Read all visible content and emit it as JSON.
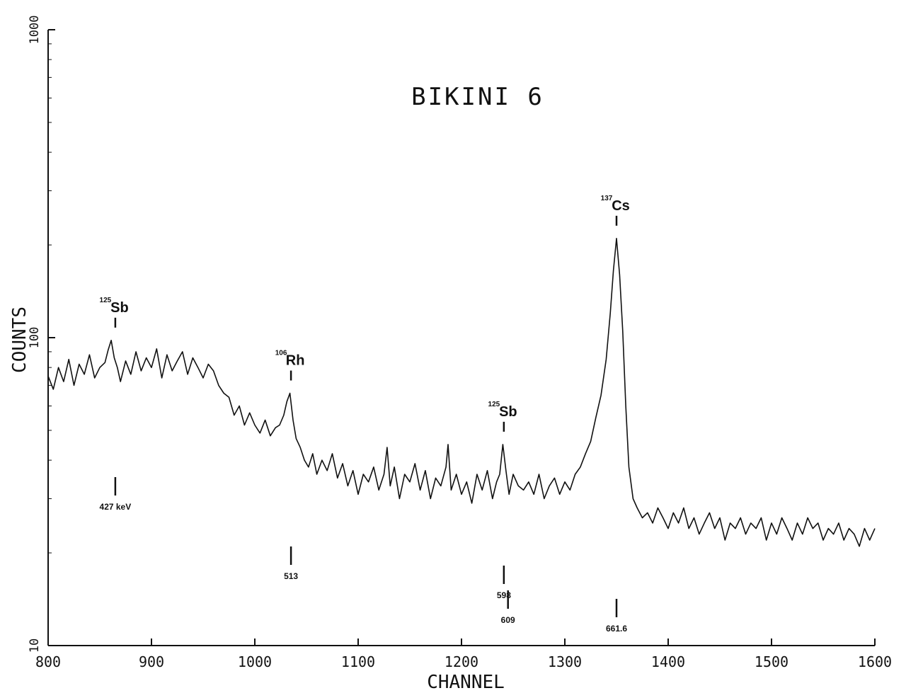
{
  "chart_data": {
    "type": "line",
    "title": "BIKINI 6",
    "xlabel": "CHANNEL",
    "ylabel": "COUNTS",
    "xlim": [
      800,
      1600
    ],
    "ylim": [
      10,
      1000
    ],
    "yscale": "log",
    "grid": false,
    "legend": "none",
    "line_color": "#111111",
    "x_ticks": [
      800,
      900,
      1000,
      1100,
      1200,
      1300,
      1400,
      1500,
      1600
    ],
    "x_tick_labels": [
      "800",
      "900",
      "1000",
      "1100",
      "1200",
      "1300",
      "1400",
      "1500",
      "1600"
    ],
    "y_ticks": [
      10,
      100,
      1000
    ],
    "y_tick_labels": [
      "10",
      "100",
      "1000"
    ],
    "series": [
      {
        "name": "",
        "x": [
          800,
          805,
          810,
          815,
          820,
          825,
          830,
          835,
          840,
          845,
          850,
          855,
          858,
          861,
          864,
          867,
          870,
          875,
          880,
          885,
          890,
          895,
          900,
          905,
          910,
          915,
          920,
          925,
          930,
          935,
          940,
          945,
          950,
          955,
          960,
          965,
          970,
          975,
          980,
          985,
          990,
          995,
          1000,
          1005,
          1010,
          1015,
          1020,
          1024,
          1028,
          1031,
          1034,
          1037,
          1040,
          1044,
          1048,
          1052,
          1056,
          1060,
          1065,
          1070,
          1075,
          1080,
          1085,
          1090,
          1095,
          1100,
          1105,
          1110,
          1115,
          1120,
          1125,
          1128,
          1131,
          1135,
          1140,
          1145,
          1150,
          1155,
          1160,
          1165,
          1170,
          1175,
          1180,
          1185,
          1187,
          1190,
          1195,
          1200,
          1205,
          1210,
          1215,
          1220,
          1225,
          1230,
          1234,
          1237,
          1240,
          1243,
          1246,
          1250,
          1255,
          1260,
          1265,
          1270,
          1275,
          1280,
          1285,
          1290,
          1295,
          1300,
          1305,
          1310,
          1315,
          1320,
          1325,
          1330,
          1335,
          1340,
          1344,
          1347,
          1350,
          1353,
          1356,
          1359,
          1362,
          1366,
          1370,
          1375,
          1380,
          1385,
          1390,
          1395,
          1400,
          1405,
          1410,
          1415,
          1420,
          1425,
          1430,
          1435,
          1440,
          1445,
          1450,
          1455,
          1460,
          1465,
          1470,
          1475,
          1480,
          1485,
          1490,
          1495,
          1500,
          1505,
          1510,
          1515,
          1520,
          1525,
          1530,
          1535,
          1540,
          1545,
          1550,
          1555,
          1560,
          1565,
          1570,
          1575,
          1580,
          1585,
          1590,
          1595,
          1600
        ],
        "values": [
          75,
          68,
          80,
          72,
          85,
          70,
          82,
          76,
          88,
          74,
          80,
          83,
          91,
          98,
          86,
          80,
          72,
          84,
          76,
          90,
          78,
          86,
          80,
          92,
          74,
          88,
          78,
          84,
          90,
          76,
          86,
          80,
          74,
          82,
          78,
          70,
          66,
          64,
          56,
          60,
          52,
          57,
          52,
          49,
          54,
          48,
          51,
          52,
          56,
          62,
          66,
          54,
          47,
          44,
          40,
          38,
          42,
          36,
          40,
          37,
          42,
          35,
          39,
          33,
          37,
          31,
          36,
          34,
          38,
          32,
          36,
          44,
          33,
          38,
          30,
          36,
          34,
          39,
          32,
          37,
          30,
          35,
          33,
          38,
          45,
          32,
          36,
          31,
          34,
          29,
          36,
          32,
          37,
          30,
          34,
          36,
          45,
          37,
          31,
          36,
          33,
          32,
          34,
          31,
          36,
          30,
          33,
          35,
          31,
          34,
          32,
          36,
          38,
          42,
          46,
          55,
          65,
          85,
          120,
          165,
          210,
          160,
          105,
          60,
          38,
          30,
          28,
          26,
          27,
          25,
          28,
          26,
          24,
          27,
          25,
          28,
          24,
          26,
          23,
          25,
          27,
          24,
          26,
          22,
          25,
          24,
          26,
          23,
          25,
          24,
          26,
          22,
          25,
          23,
          26,
          24,
          22,
          25,
          23,
          26,
          24,
          25,
          22,
          24,
          23,
          25,
          22,
          24,
          23,
          21,
          24,
          22,
          24
        ]
      }
    ],
    "peak_labels": [
      {
        "nuclide": "Sb",
        "mass": "125",
        "channel": 865,
        "energy_label": "427 keV"
      },
      {
        "nuclide": "Rh",
        "mass": "106",
        "channel": 1035,
        "energy_label": "513"
      },
      {
        "nuclide": "Sb",
        "mass": "125",
        "channel": 1241,
        "energy_label": "598"
      },
      {
        "nuclide": "",
        "mass": "",
        "channel": 1245,
        "energy_label": "609"
      },
      {
        "nuclide": "Cs",
        "mass": "137",
        "channel": 1350,
        "energy_label": "661.6"
      }
    ]
  }
}
